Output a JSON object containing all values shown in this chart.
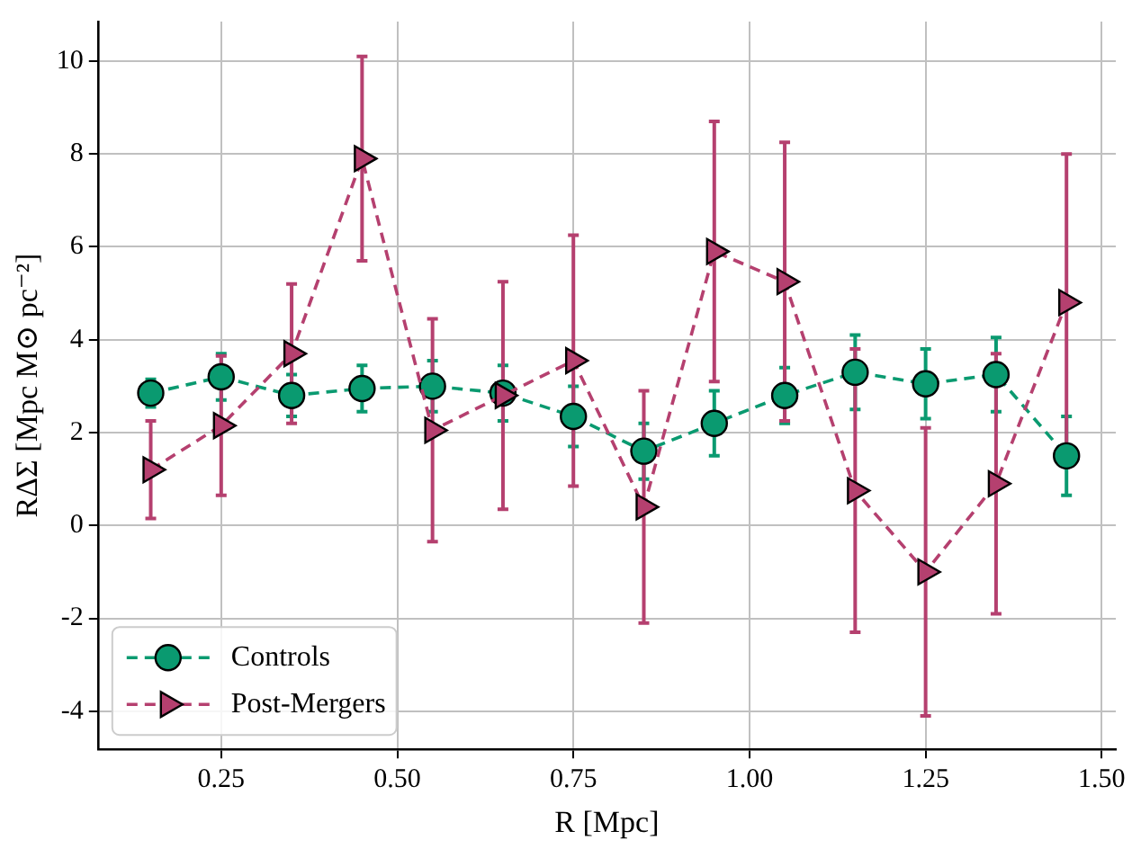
{
  "chart_data": {
    "type": "line",
    "xlabel": "R [Mpc]",
    "ylabel": "RΔΣ [Mpc M⊙ pc⁻²]",
    "x": [
      0.15,
      0.25,
      0.35,
      0.45,
      0.55,
      0.65,
      0.75,
      0.85,
      0.95,
      1.05,
      1.15,
      1.25,
      1.35,
      1.45
    ],
    "series": [
      {
        "name": "Controls",
        "color": "#0a9a70",
        "marker": "circle",
        "values": [
          2.85,
          3.2,
          2.8,
          2.95,
          3.0,
          2.85,
          2.35,
          1.6,
          2.2,
          2.8,
          3.3,
          3.05,
          3.25,
          1.5
        ],
        "errors": [
          0.3,
          0.5,
          0.45,
          0.5,
          0.55,
          0.6,
          0.65,
          0.6,
          0.7,
          0.6,
          0.8,
          0.75,
          0.8,
          0.85
        ]
      },
      {
        "name": "Post-Mergers",
        "color": "#b5406f",
        "marker": "triangle",
        "values": [
          1.2,
          2.15,
          3.7,
          7.9,
          2.05,
          2.8,
          3.55,
          0.4,
          5.9,
          5.25,
          0.75,
          -1.0,
          0.9,
          4.8
        ],
        "errors": [
          1.05,
          1.5,
          1.5,
          2.2,
          2.4,
          2.45,
          2.7,
          2.5,
          2.8,
          3.0,
          3.05,
          3.1,
          2.8,
          3.2
        ]
      }
    ],
    "xlim": [
      0.075,
      1.52
    ],
    "ylim": [
      -4.82,
      10.85
    ],
    "xticks": [
      {
        "value": 0.25,
        "label": "0.25"
      },
      {
        "value": 0.5,
        "label": "0.50"
      },
      {
        "value": 0.75,
        "label": "0.75"
      },
      {
        "value": 1.0,
        "label": "1.00"
      },
      {
        "value": 1.25,
        "label": "1.25"
      },
      {
        "value": 1.5,
        "label": "1.50"
      }
    ],
    "yticks": [
      -4,
      -2,
      0,
      2,
      4,
      6,
      8,
      10
    ],
    "grid": true,
    "legend": "bottom left",
    "line_style": "dashed"
  }
}
